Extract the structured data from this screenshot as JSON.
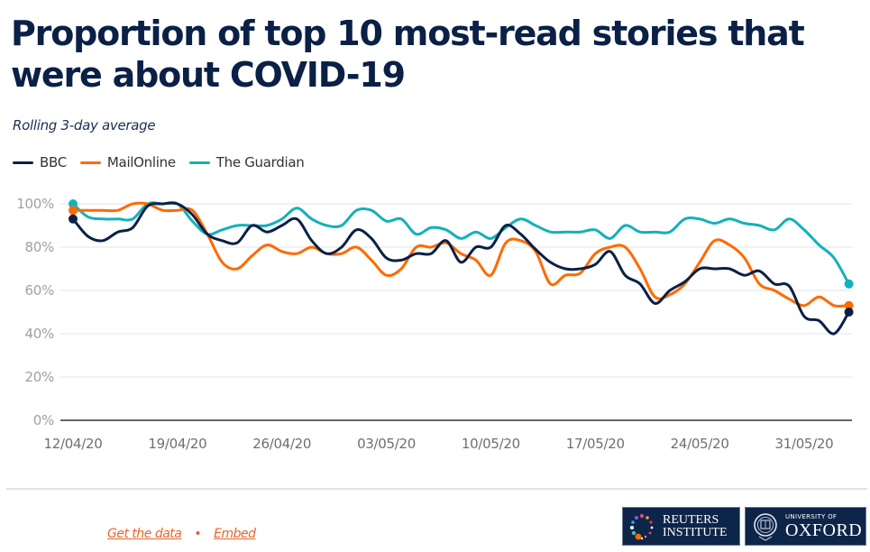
{
  "header": {
    "title": "Proportion of top 10 most-read stories that were about COVID-19",
    "subtitle": "Rolling 3-day average"
  },
  "legend": [
    {
      "name": "BBC",
      "color": "#0a2046"
    },
    {
      "name": "MailOnline",
      "color": "#ff6a00"
    },
    {
      "name": "The Guardian",
      "color": "#14b0bc"
    }
  ],
  "footer": {
    "get_data_label": "Get the data",
    "separator": "•",
    "embed_label": "Embed",
    "logo_reuters": {
      "line1": "REUTERS",
      "line2": "INSTITUTE",
      "icon": "dot-ring-icon"
    },
    "logo_oxford": {
      "line1": "UNIVERSITY OF",
      "line2": "OXFORD",
      "icon": "crest-icon"
    }
  },
  "chart_data": {
    "type": "line",
    "title": "Proportion of top 10 most-read stories that were about COVID-19",
    "subtitle": "Rolling 3-day average",
    "xlabel": "",
    "ylabel": "",
    "x_start": "12/04/20",
    "x_end": "03/06/20",
    "x_ticks": [
      "12/04/20",
      "19/04/20",
      "26/04/20",
      "03/05/20",
      "10/05/20",
      "17/05/20",
      "24/05/20",
      "31/05/20"
    ],
    "x_tick_day_offsets": [
      0,
      7,
      14,
      21,
      28,
      35,
      42,
      49
    ],
    "y_ticks": [
      "0%",
      "20%",
      "40%",
      "60%",
      "80%",
      "100%"
    ],
    "y_tick_values": [
      0,
      20,
      40,
      60,
      80,
      100
    ],
    "ylim": [
      0,
      100
    ],
    "grid": true,
    "legend_position": "top-left",
    "series": [
      {
        "name": "BBC",
        "color": "#0a2046",
        "values": [
          93,
          85,
          83,
          87,
          89,
          99,
          100,
          100,
          95,
          86,
          83,
          82,
          90,
          87,
          90,
          93,
          83,
          77,
          80,
          88,
          84,
          75,
          74,
          77,
          77,
          83,
          73,
          80,
          80,
          90,
          86,
          79,
          73,
          70,
          70,
          72,
          78,
          67,
          63,
          54,
          60,
          64,
          70,
          70,
          70,
          67,
          69,
          63,
          62,
          48,
          46,
          40,
          50
        ]
      },
      {
        "name": "MailOnline",
        "color": "#ff6a00",
        "values": [
          97,
          97,
          97,
          97,
          100,
          100,
          97,
          97,
          97,
          86,
          73,
          70,
          76,
          81,
          78,
          77,
          80,
          77,
          77,
          80,
          74,
          67,
          70,
          80,
          80,
          82,
          77,
          74,
          67,
          82,
          83,
          78,
          63,
          67,
          68,
          77,
          80,
          80,
          70,
          57,
          58,
          63,
          73,
          83,
          81,
          75,
          63,
          60,
          56,
          53,
          57,
          53,
          53
        ]
      },
      {
        "name": "The Guardian",
        "color": "#14b0bc",
        "values": [
          100,
          94,
          93,
          93,
          93,
          100,
          100,
          100,
          92,
          86,
          88,
          90,
          90,
          90,
          93,
          98,
          93,
          90,
          90,
          97,
          97,
          92,
          93,
          86,
          89,
          88,
          84,
          87,
          84,
          89,
          93,
          90,
          87,
          87,
          87,
          88,
          84,
          90,
          87,
          87,
          87,
          93,
          93,
          91,
          93,
          91,
          90,
          88,
          93,
          88,
          81,
          75,
          63
        ]
      }
    ]
  }
}
